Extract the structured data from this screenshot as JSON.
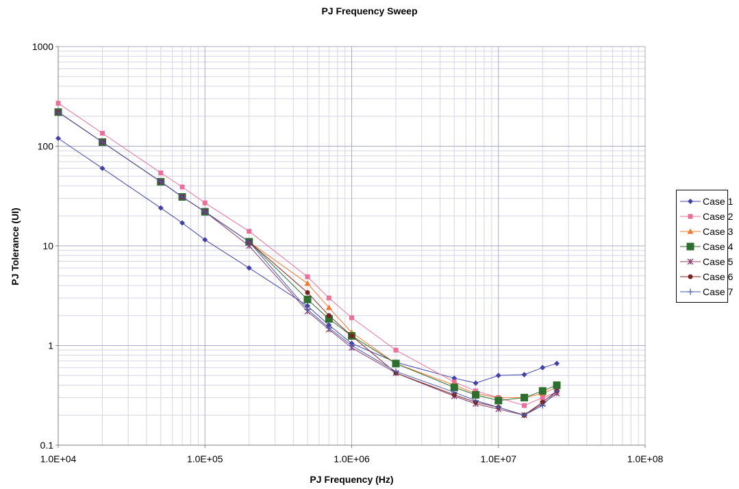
{
  "chart_data": {
    "type": "line",
    "title": "PJ Frequency Sweep",
    "xlabel": "PJ Frequency (Hz)",
    "ylabel": "PJ Tolerance (UI)",
    "xscale": "log",
    "yscale": "log",
    "xlim": [
      10000,
      100000000
    ],
    "ylim": [
      0.1,
      1000
    ],
    "x_tick_labels": [
      "1.0E+04",
      "1.0E+05",
      "1.0E+06",
      "1.0E+07",
      "1.0E+08"
    ],
    "y_tick_labels": [
      "0.1",
      "1",
      "10",
      "100",
      "1000"
    ],
    "grid": true,
    "legend_position": "right",
    "series": [
      {
        "name": "Case 1",
        "color": "#4040a8",
        "marker": "diamond",
        "x": [
          10000,
          20000,
          50000,
          70000,
          100000,
          200000,
          500000,
          700000,
          1000000,
          2000000,
          5000000,
          7000000,
          10000000,
          15000000,
          20000000,
          25000000
        ],
        "y": [
          120,
          60,
          24,
          17,
          11.5,
          6,
          2.5,
          1.6,
          1.05,
          0.68,
          0.47,
          0.42,
          0.5,
          0.51,
          0.6,
          0.66
        ]
      },
      {
        "name": "Case 2",
        "color": "#e8709a",
        "marker": "square",
        "x": [
          10000,
          20000,
          50000,
          70000,
          100000,
          200000,
          500000,
          700000,
          1000000,
          2000000,
          5000000,
          7000000,
          10000000,
          15000000,
          20000000,
          25000000
        ],
        "y": [
          270,
          135,
          54,
          39,
          27,
          14,
          4.9,
          3.0,
          1.9,
          0.9,
          0.43,
          0.35,
          0.3,
          0.25,
          0.3,
          0.34
        ]
      },
      {
        "name": "Case 3",
        "color": "#f07830",
        "marker": "triangle",
        "x": [
          10000,
          20000,
          50000,
          70000,
          100000,
          200000,
          500000,
          700000,
          1000000,
          2000000,
          5000000,
          7000000,
          10000000,
          15000000,
          20000000,
          25000000
        ],
        "y": [
          220,
          110,
          44,
          31,
          22,
          11,
          4.2,
          2.4,
          1.35,
          0.66,
          0.4,
          0.33,
          0.3,
          0.3,
          0.33,
          0.38
        ]
      },
      {
        "name": "Case 4",
        "color": "#2e6e2e",
        "marker": "bigsquare",
        "x": [
          10000,
          20000,
          50000,
          70000,
          100000,
          200000,
          500000,
          700000,
          1000000,
          2000000,
          5000000,
          7000000,
          10000000,
          15000000,
          20000000,
          25000000
        ],
        "y": [
          220,
          110,
          44,
          31,
          22,
          11,
          2.9,
          1.85,
          1.25,
          0.66,
          0.38,
          0.32,
          0.28,
          0.3,
          0.35,
          0.4
        ]
      },
      {
        "name": "Case 5",
        "color": "#8a3a6e",
        "marker": "star",
        "x": [
          10000,
          20000,
          50000,
          70000,
          100000,
          200000,
          500000,
          700000,
          1000000,
          2000000,
          5000000,
          7000000,
          10000000,
          15000000,
          20000000,
          25000000
        ],
        "y": [
          220,
          110,
          44,
          31,
          22,
          10,
          2.2,
          1.45,
          0.95,
          0.53,
          0.31,
          0.26,
          0.23,
          0.2,
          0.26,
          0.33
        ]
      },
      {
        "name": "Case 6",
        "color": "#7a2222",
        "marker": "circle",
        "x": [
          10000,
          20000,
          50000,
          70000,
          100000,
          200000,
          500000,
          700000,
          1000000,
          2000000,
          5000000,
          7000000,
          10000000,
          15000000,
          20000000,
          25000000
        ],
        "y": [
          220,
          110,
          44,
          31,
          22,
          11,
          3.4,
          2.0,
          1.25,
          0.53,
          0.32,
          0.27,
          0.24,
          0.2,
          0.27,
          0.35
        ]
      },
      {
        "name": "Case 7",
        "color": "#4a5aa8",
        "marker": "plus",
        "x": [
          10000,
          20000,
          50000,
          70000,
          100000,
          200000,
          500000,
          700000,
          1000000,
          2000000,
          5000000,
          7000000,
          10000000,
          15000000,
          20000000,
          25000000
        ],
        "y": [
          220,
          110,
          44,
          31,
          22,
          11,
          2.3,
          1.5,
          1.0,
          0.55,
          0.34,
          0.28,
          0.24,
          0.2,
          0.25,
          0.35
        ]
      }
    ]
  }
}
